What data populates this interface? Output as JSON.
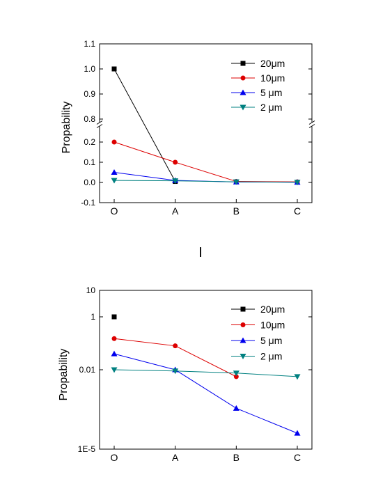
{
  "separator_text": "I",
  "chart_data": [
    {
      "type": "line",
      "ylabel": "Propability",
      "categories": [
        "O",
        "A",
        "B",
        "C"
      ],
      "y_scale": "linear-broken",
      "y_break": [
        0.25,
        0.8
      ],
      "ylim": [
        -0.1,
        1.1
      ],
      "y_ticks": [
        -0.1,
        0.0,
        0.1,
        0.2,
        0.8,
        0.9,
        1.0,
        1.1
      ],
      "y_tick_labels": [
        "-0.1",
        "0.0",
        "0.1",
        "0.2",
        "0.8",
        "0.9",
        "1.0",
        "1.1"
      ],
      "legend_position": "top-right",
      "grid": false,
      "series": [
        {
          "name": "20μm",
          "color": "#000000",
          "marker": "square",
          "values": [
            1.0,
            0.005,
            null,
            null
          ]
        },
        {
          "name": "10μm",
          "color": "#dd0000",
          "marker": "circle",
          "values": [
            0.2,
            0.1,
            0.005,
            0.003
          ]
        },
        {
          "name": "5 μm",
          "color": "#0000ee",
          "marker": "triangle-up",
          "values": [
            0.05,
            0.01,
            0.002,
            0.001
          ]
        },
        {
          "name": "2 μm",
          "color": "#008080",
          "marker": "triangle-down",
          "values": [
            0.01,
            0.008,
            0.003,
            0.001
          ]
        }
      ]
    },
    {
      "type": "line",
      "ylabel": "Propability",
      "categories": [
        "O",
        "A",
        "B",
        "C"
      ],
      "y_scale": "log",
      "ylim": [
        1e-05,
        10
      ],
      "y_ticks": [
        1e-05,
        0.01,
        1,
        10
      ],
      "y_tick_labels": [
        "1E-5",
        "0.01",
        "1",
        "10"
      ],
      "legend_position": "top-right",
      "grid": false,
      "series": [
        {
          "name": "20μm",
          "color": "#000000",
          "marker": "square",
          "values": [
            1.0,
            null,
            null,
            null
          ]
        },
        {
          "name": "10μm",
          "color": "#dd0000",
          "marker": "circle",
          "values": [
            0.15,
            0.08,
            0.0055,
            null
          ]
        },
        {
          "name": "5 μm",
          "color": "#0000ee",
          "marker": "triangle-up",
          "values": [
            0.04,
            0.01,
            0.00035,
            4e-05
          ]
        },
        {
          "name": "2 μm",
          "color": "#008080",
          "marker": "triangle-down",
          "values": [
            0.01,
            0.009,
            0.0075,
            0.0055
          ]
        }
      ]
    }
  ]
}
